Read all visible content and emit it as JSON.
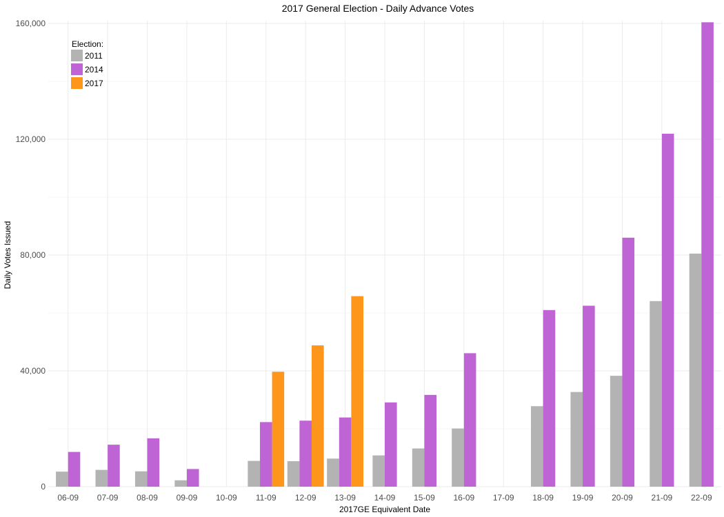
{
  "chart_data": {
    "type": "bar",
    "title": "2017 General Election - Daily Advance Votes",
    "xlabel": "2017GE Equivalent Date",
    "ylabel": "Daily Votes Issued",
    "ylim": [
      0,
      160000
    ],
    "yticks": [
      0,
      40000,
      80000,
      120000,
      160000
    ],
    "ytick_labels": [
      "0",
      "40,000",
      "80,000",
      "120,000",
      "160,000"
    ],
    "grid": true,
    "legend": {
      "title": "Election:",
      "position": "top-left"
    },
    "categories": [
      "06-09",
      "07-09",
      "08-09",
      "09-09",
      "10-09",
      "11-09",
      "12-09",
      "13-09",
      "14-09",
      "15-09",
      "16-09",
      "17-09",
      "18-09",
      "19-09",
      "20-09",
      "21-09",
      "22-09"
    ],
    "series": [
      {
        "name": "2011",
        "color": "#b3b3b3",
        "values": [
          5200,
          5800,
          5300,
          2200,
          null,
          8900,
          8800,
          9700,
          10800,
          13200,
          20100,
          null,
          27800,
          32700,
          38300,
          64100,
          80500
        ]
      },
      {
        "name": "2014",
        "color": "#bf64d4",
        "values": [
          12000,
          14500,
          16700,
          6100,
          null,
          22300,
          22800,
          23900,
          29100,
          31700,
          46100,
          null,
          61000,
          62500,
          86000,
          121900,
          160400
        ]
      },
      {
        "name": "2017",
        "color": "#ff961c",
        "values": [
          null,
          null,
          null,
          null,
          null,
          39700,
          48800,
          65800,
          null,
          null,
          null,
          null,
          null,
          null,
          null,
          null,
          null
        ]
      }
    ]
  }
}
